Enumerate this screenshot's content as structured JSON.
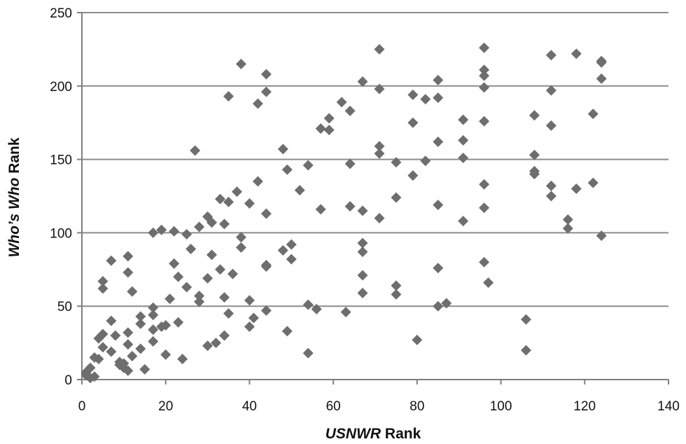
{
  "chart_data": {
    "type": "scatter",
    "xlabel_parts": [
      {
        "text": "USNWR",
        "italic": true
      },
      {
        "text": " Rank",
        "italic": false
      }
    ],
    "ylabel_parts": [
      {
        "text": "Who’s Who",
        "italic": true
      },
      {
        "text": " Rank",
        "italic": false
      }
    ],
    "xlim": [
      0,
      140
    ],
    "ylim": [
      0,
      250
    ],
    "xticks": [
      0,
      20,
      40,
      60,
      80,
      100,
      120,
      140
    ],
    "yticks": [
      0,
      50,
      100,
      150,
      200,
      250
    ],
    "grid": "horizontal",
    "marker": "diamond",
    "colors": {
      "marker": "#6e6e6e",
      "grid": "#8c8c8c",
      "axis": "#7f7f7f"
    },
    "points": [
      [
        1,
        3
      ],
      [
        1,
        5
      ],
      [
        2,
        1
      ],
      [
        2,
        8
      ],
      [
        3,
        2
      ],
      [
        3,
        15
      ],
      [
        4,
        14
      ],
      [
        4,
        28
      ],
      [
        5,
        22
      ],
      [
        5,
        31
      ],
      [
        5,
        62
      ],
      [
        5,
        67
      ],
      [
        7,
        19
      ],
      [
        7,
        40
      ],
      [
        7,
        81
      ],
      [
        8,
        30
      ],
      [
        9,
        10
      ],
      [
        9,
        12
      ],
      [
        10,
        8
      ],
      [
        10,
        11
      ],
      [
        11,
        6
      ],
      [
        11,
        24
      ],
      [
        11,
        32
      ],
      [
        11,
        73
      ],
      [
        11,
        84
      ],
      [
        12,
        16
      ],
      [
        12,
        60
      ],
      [
        14,
        21
      ],
      [
        14,
        38
      ],
      [
        14,
        43
      ],
      [
        15,
        7
      ],
      [
        17,
        26
      ],
      [
        17,
        34
      ],
      [
        17,
        44
      ],
      [
        17,
        49
      ],
      [
        17,
        100
      ],
      [
        19,
        102
      ],
      [
        19,
        36
      ],
      [
        20,
        17
      ],
      [
        20,
        37
      ],
      [
        21,
        55
      ],
      [
        22,
        79
      ],
      [
        22,
        101
      ],
      [
        23,
        39
      ],
      [
        23,
        70
      ],
      [
        24,
        14
      ],
      [
        25,
        63
      ],
      [
        25,
        99
      ],
      [
        26,
        89
      ],
      [
        27,
        156
      ],
      [
        28,
        53
      ],
      [
        28,
        57
      ],
      [
        28,
        104
      ],
      [
        30,
        69
      ],
      [
        30,
        23
      ],
      [
        30,
        111
      ],
      [
        31,
        85
      ],
      [
        31,
        107
      ],
      [
        32,
        25
      ],
      [
        33,
        75
      ],
      [
        33,
        123
      ],
      [
        34,
        30
      ],
      [
        34,
        56
      ],
      [
        34,
        106
      ],
      [
        35,
        45
      ],
      [
        35,
        193
      ],
      [
        35,
        121
      ],
      [
        36,
        72
      ],
      [
        37,
        128
      ],
      [
        38,
        90
      ],
      [
        38,
        97
      ],
      [
        38,
        215
      ],
      [
        40,
        36
      ],
      [
        40,
        54
      ],
      [
        40,
        120
      ],
      [
        41,
        42
      ],
      [
        42,
        188
      ],
      [
        42,
        135
      ],
      [
        44,
        47
      ],
      [
        44,
        77
      ],
      [
        44,
        78
      ],
      [
        44,
        113
      ],
      [
        44,
        196
      ],
      [
        44,
        208
      ],
      [
        48,
        88
      ],
      [
        48,
        157
      ],
      [
        49,
        33
      ],
      [
        49,
        143
      ],
      [
        50,
        82
      ],
      [
        50,
        92
      ],
      [
        52,
        129
      ],
      [
        54,
        18
      ],
      [
        54,
        146
      ],
      [
        54,
        51
      ],
      [
        56,
        48
      ],
      [
        57,
        116
      ],
      [
        57,
        171
      ],
      [
        59,
        170
      ],
      [
        59,
        178
      ],
      [
        62,
        189
      ],
      [
        63,
        46
      ],
      [
        64,
        118
      ],
      [
        64,
        147
      ],
      [
        64,
        183
      ],
      [
        67,
        59
      ],
      [
        67,
        71
      ],
      [
        67,
        87
      ],
      [
        67,
        93
      ],
      [
        67,
        115
      ],
      [
        67,
        203
      ],
      [
        71,
        110
      ],
      [
        71,
        154
      ],
      [
        71,
        159
      ],
      [
        71,
        198
      ],
      [
        71,
        225
      ],
      [
        75,
        58
      ],
      [
        75,
        64
      ],
      [
        75,
        124
      ],
      [
        75,
        148
      ],
      [
        79,
        139
      ],
      [
        79,
        175
      ],
      [
        79,
        194
      ],
      [
        80,
        27
      ],
      [
        82,
        149
      ],
      [
        82,
        191
      ],
      [
        85,
        50
      ],
      [
        85,
        76
      ],
      [
        85,
        119
      ],
      [
        85,
        162
      ],
      [
        85,
        192
      ],
      [
        85,
        204
      ],
      [
        87,
        52
      ],
      [
        91,
        108
      ],
      [
        91,
        151
      ],
      [
        91,
        163
      ],
      [
        91,
        177
      ],
      [
        96,
        80
      ],
      [
        96,
        117
      ],
      [
        96,
        133
      ],
      [
        96,
        176
      ],
      [
        96,
        199
      ],
      [
        96,
        207
      ],
      [
        96,
        211
      ],
      [
        96,
        226
      ],
      [
        97,
        66
      ],
      [
        106,
        20
      ],
      [
        106,
        41
      ],
      [
        108,
        140
      ],
      [
        108,
        142
      ],
      [
        108,
        153
      ],
      [
        108,
        180
      ],
      [
        112,
        125
      ],
      [
        112,
        132
      ],
      [
        112,
        173
      ],
      [
        112,
        197
      ],
      [
        112,
        221
      ],
      [
        116,
        103
      ],
      [
        116,
        109
      ],
      [
        118,
        130
      ],
      [
        118,
        222
      ],
      [
        122,
        134
      ],
      [
        122,
        181
      ],
      [
        124,
        98
      ],
      [
        124,
        205
      ],
      [
        124,
        216
      ],
      [
        124,
        217
      ]
    ]
  }
}
